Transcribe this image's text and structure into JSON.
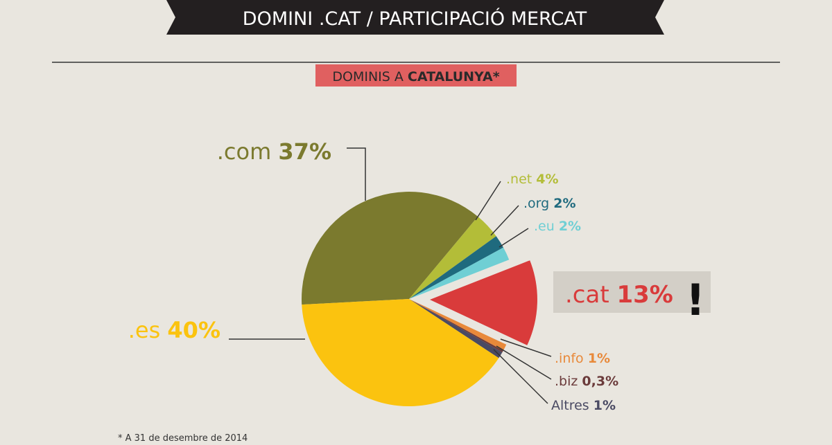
{
  "chart_data": {
    "type": "pie",
    "title": "DOMINI .CAT / PARTICIPACIÓ MERCAT",
    "subtitle": {
      "text": "DOMINIS A",
      "emphasis": "CATALUNYA*"
    },
    "categories": [
      ".com",
      ".net",
      ".org",
      ".eu",
      ".cat",
      ".info",
      ".biz",
      "Altres",
      ".es"
    ],
    "values": [
      37,
      4,
      2,
      2,
      13,
      1,
      0.3,
      1,
      40
    ],
    "value_labels": [
      "37%",
      "4%",
      "2%",
      "2%",
      "13%",
      "1%",
      "0,3%",
      "1%",
      "40%"
    ],
    "colors": [
      "#7b7a2e",
      "#b3bd38",
      "#1f6a7e",
      "#6fcfd4",
      "#d93b3b",
      "#e8893a",
      "#6b3b3b",
      "#4a4a63",
      "#fbc30f"
    ],
    "exploded": ".cat",
    "callout": "!",
    "footnote": "* A 31 de desembre de 2014"
  }
}
